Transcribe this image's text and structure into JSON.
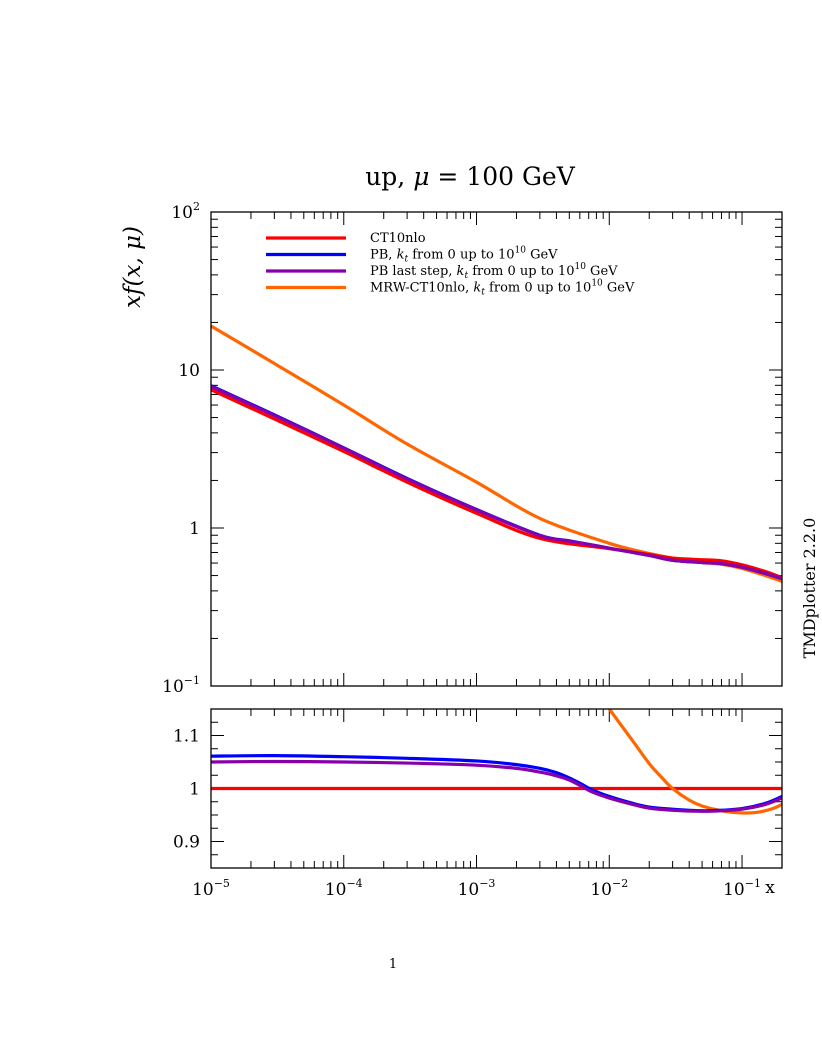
{
  "page": {
    "title_main": "up, ",
    "title_mu": "μ",
    "title_rest": " = 100 GeV",
    "side_label": "TMDplotter 2.2.0",
    "page_number": "1"
  },
  "chart_data": [
    {
      "type": "line",
      "title": "up, μ = 100 GeV",
      "ylabel": "xf(x, μ)",
      "xscale": "log",
      "yscale": "log",
      "xlim": [
        1e-05,
        0.2
      ],
      "ylim": [
        0.1,
        100
      ],
      "x_ticks": [
        {
          "base": "10",
          "exp": "−5",
          "value": 1e-05
        },
        {
          "base": "10",
          "exp": "−4",
          "value": 0.0001
        },
        {
          "base": "10",
          "exp": "−3",
          "value": 0.001
        },
        {
          "base": "10",
          "exp": "−2",
          "value": 0.01
        },
        {
          "base": "10",
          "exp": "−1",
          "value": 0.1
        }
      ],
      "x_end_label": "x",
      "y_ticks": [
        {
          "base": "10",
          "exp": "−1",
          "value": 0.1
        },
        {
          "base": "1",
          "exp": "",
          "value": 1
        },
        {
          "base": "10",
          "exp": "",
          "value": 10
        },
        {
          "base": "10",
          "exp": "2",
          "value": 100
        }
      ],
      "legend_position": "top-left",
      "series": [
        {
          "name": "CT10nlo",
          "legend_parts": [
            "CT10nlo"
          ],
          "color": "#ff0000",
          "x": [
            1e-05,
            3e-05,
            0.0001,
            0.0003,
            0.001,
            0.003,
            0.01,
            0.02,
            0.03,
            0.05,
            0.07,
            0.1,
            0.15,
            0.2
          ],
          "y": [
            7.5,
            4.9,
            3.05,
            1.95,
            1.24,
            0.86,
            0.74,
            0.68,
            0.645,
            0.63,
            0.62,
            0.585,
            0.53,
            0.485
          ]
        },
        {
          "name": "PB, kt from 0 up to 1010 GeV",
          "legend_parts": [
            "PB, ",
            "k",
            "t",
            " from 0 up to 10",
            "10",
            " GeV"
          ],
          "color": "#0000ff",
          "x": [
            1e-05,
            3e-05,
            0.0001,
            0.0003,
            0.001,
            0.003,
            0.005,
            0.0075,
            0.01,
            0.02,
            0.03,
            0.05,
            0.07,
            0.1,
            0.15,
            0.2
          ],
          "y": [
            7.95,
            5.2,
            3.22,
            2.06,
            1.31,
            0.9,
            0.83,
            0.78,
            0.745,
            0.67,
            0.625,
            0.605,
            0.595,
            0.565,
            0.515,
            0.478
          ]
        },
        {
          "name": "PB last step, kt from 0 up to 1010 GeV",
          "legend_parts": [
            "PB last step, ",
            "k",
            "t",
            " from 0 up to 10",
            "10",
            " GeV"
          ],
          "color": "#8800aa",
          "x": [
            1e-05,
            3e-05,
            0.0001,
            0.0003,
            0.001,
            0.003,
            0.005,
            0.0075,
            0.01,
            0.02,
            0.03,
            0.05,
            0.07,
            0.1,
            0.15,
            0.2
          ],
          "y": [
            7.87,
            5.15,
            3.2,
            2.04,
            1.3,
            0.895,
            0.825,
            0.78,
            0.745,
            0.67,
            0.625,
            0.605,
            0.595,
            0.565,
            0.515,
            0.478
          ]
        },
        {
          "name": "MRW-CT10nlo, kt from 0 up to 1010 GeV",
          "legend_parts": [
            "MRW-CT10nlo, ",
            "k",
            "t",
            " from 0 up to 10",
            "10",
            " GeV"
          ],
          "color": "#ff6600",
          "x": [
            1e-05,
            3e-05,
            0.0001,
            0.0003,
            0.001,
            0.003,
            0.01,
            0.02,
            0.03,
            0.05,
            0.07,
            0.1,
            0.15,
            0.2
          ],
          "y": [
            19,
            11,
            6.0,
            3.4,
            1.95,
            1.15,
            0.8,
            0.69,
            0.645,
            0.605,
            0.59,
            0.555,
            0.5,
            0.46
          ]
        }
      ]
    },
    {
      "type": "line",
      "title": "",
      "xscale": "log",
      "xlim": [
        1e-05,
        0.2
      ],
      "ylim": [
        0.85,
        1.15
      ],
      "y_ticks": [
        0.9,
        1,
        1.1
      ],
      "y_tick_labels": [
        "0.9",
        "1",
        "1.1"
      ],
      "series": [
        {
          "name": "CT10nlo",
          "color": "#ff0000",
          "x": [
            1e-05,
            0.2
          ],
          "y": [
            1.0,
            1.0
          ]
        },
        {
          "name": "PB, kt from 0 up to 1010 GeV",
          "color": "#0000ff",
          "x": [
            1e-05,
            3e-05,
            0.0001,
            0.0003,
            0.001,
            0.002,
            0.003,
            0.004,
            0.005,
            0.006,
            0.0075,
            0.01,
            0.015,
            0.02,
            0.03,
            0.05,
            0.07,
            0.1,
            0.15,
            0.2
          ],
          "y": [
            1.061,
            1.062,
            1.06,
            1.057,
            1.052,
            1.045,
            1.038,
            1.03,
            1.02,
            1.01,
            0.997,
            0.985,
            0.972,
            0.965,
            0.961,
            0.958,
            0.959,
            0.962,
            0.972,
            0.985
          ]
        },
        {
          "name": "PB last step, kt from 0 up to 1010 GeV",
          "color": "#8800aa",
          "x": [
            1e-05,
            3e-05,
            0.0001,
            0.0003,
            0.001,
            0.002,
            0.003,
            0.004,
            0.005,
            0.006,
            0.0075,
            0.01,
            0.015,
            0.02,
            0.03,
            0.05,
            0.07,
            0.1,
            0.15,
            0.2
          ],
          "y": [
            1.05,
            1.051,
            1.05,
            1.048,
            1.044,
            1.038,
            1.031,
            1.024,
            1.016,
            1.006,
            0.993,
            0.982,
            0.97,
            0.963,
            0.959,
            0.957,
            0.958,
            0.961,
            0.97,
            0.982
          ]
        },
        {
          "name": "MRW-CT10nlo, kt from 0 up to 1010 GeV",
          "color": "#ff6600",
          "x": [
            0.01,
            0.015,
            0.02,
            0.025,
            0.03,
            0.04,
            0.05,
            0.07,
            0.1,
            0.13,
            0.17,
            0.2
          ],
          "y": [
            1.15,
            1.09,
            1.047,
            1.02,
            1.0,
            0.978,
            0.967,
            0.958,
            0.954,
            0.955,
            0.962,
            0.97
          ]
        }
      ]
    }
  ]
}
